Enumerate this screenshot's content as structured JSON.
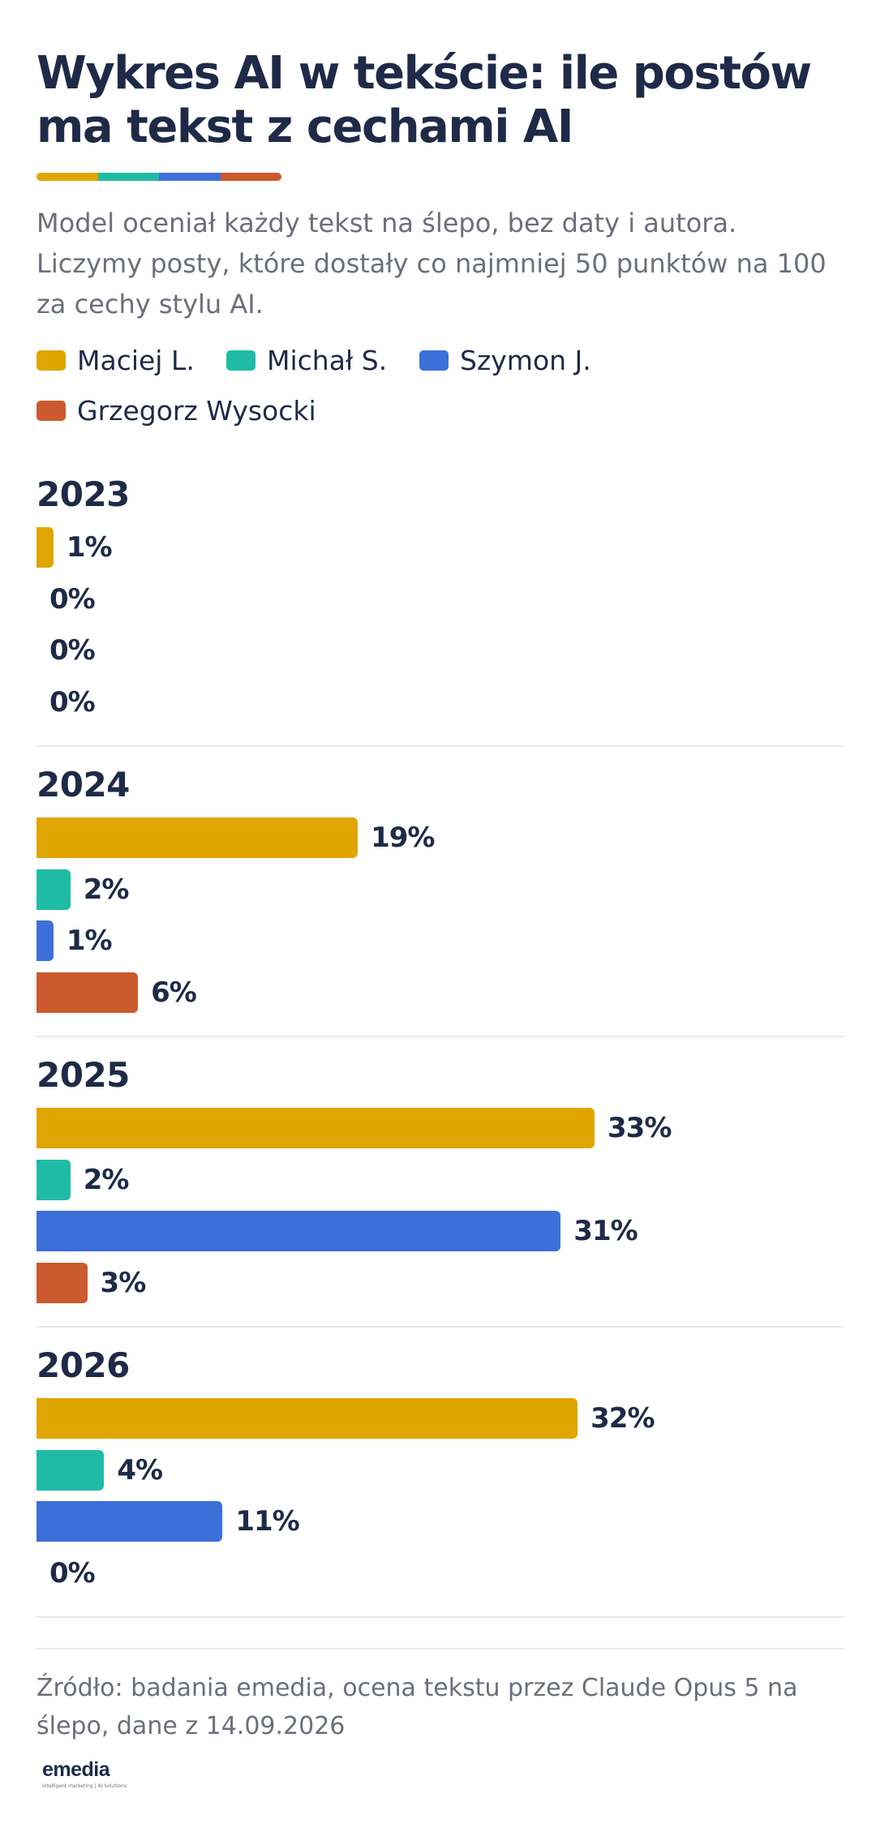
{
  "title": "Wykres AI w tekście: ile postów ma tekst z cechami AI",
  "subtitle": "Model oceniał każdy tekst na ślepo, bez daty i autora. Liczymy posty, które dostały co najmniej 50 punktów na 100 za cechy stylu AI.",
  "colors": {
    "maciej": "#e0a500",
    "michal": "#20bba5",
    "szymon": "#3d6fd8",
    "grzegorz": "#cb5a2e",
    "text": "#1e2a47"
  },
  "legend": [
    {
      "name": "Maciej L.",
      "color": "#e0a500"
    },
    {
      "name": "Michał S.",
      "color": "#20bba5"
    },
    {
      "name": "Szymon J.",
      "color": "#3d6fd8"
    },
    {
      "name": "Grzegorz Wysocki",
      "color": "#cb5a2e"
    }
  ],
  "chart_data": {
    "type": "bar",
    "orientation": "horizontal",
    "unit": "%",
    "xlim": [
      0,
      33
    ],
    "groups": [
      "2023",
      "2024",
      "2025",
      "2026"
    ],
    "series": [
      {
        "name": "Maciej L.",
        "color": "#e0a500",
        "values": [
          1,
          19,
          33,
          32
        ],
        "labels": [
          "1%",
          "19%",
          "33%",
          "32%"
        ]
      },
      {
        "name": "Michał S.",
        "color": "#20bba5",
        "values": [
          0,
          2,
          2,
          4
        ],
        "labels": [
          "0%",
          "2%",
          "2%",
          "4%"
        ]
      },
      {
        "name": "Szymon J.",
        "color": "#3d6fd8",
        "values": [
          0,
          1,
          31,
          11
        ],
        "labels": [
          "0%",
          "1%",
          "31%",
          "11%"
        ]
      },
      {
        "name": "Grzegorz Wysocki",
        "color": "#cb5a2e",
        "values": [
          0,
          6,
          3,
          0
        ],
        "labels": [
          "0%",
          "6%",
          "3%",
          "0%"
        ]
      }
    ],
    "legend_position": "top-left",
    "grid": false
  },
  "footer": {
    "source": "Źródło: badania emedia, ocena tekstu przez Claude Opus 5 na ślepo, dane z 14.09.2026",
    "logo": "emedia",
    "logo_tagline": "intelligent marketing | AI Solutions"
  }
}
